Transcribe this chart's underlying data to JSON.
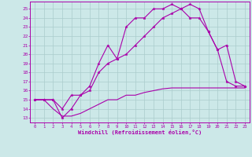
{
  "xlabel": "Windchill (Refroidissement éolien,°C)",
  "bg_color": "#cce8e8",
  "line_color": "#aa00aa",
  "grid_color": "#aacccc",
  "xlim": [
    -0.5,
    23.5
  ],
  "ylim": [
    12.5,
    25.8
  ],
  "yticks": [
    13,
    14,
    15,
    16,
    17,
    18,
    19,
    20,
    21,
    22,
    23,
    24,
    25
  ],
  "xticks": [
    0,
    1,
    2,
    3,
    4,
    5,
    6,
    7,
    8,
    9,
    10,
    11,
    12,
    13,
    14,
    15,
    16,
    17,
    18,
    19,
    20,
    21,
    22,
    23
  ],
  "line1_x": [
    0,
    1,
    2,
    3,
    4,
    5,
    6,
    7,
    8,
    9,
    10,
    11,
    12,
    13,
    14,
    15,
    16,
    17,
    18,
    19,
    20,
    21,
    22,
    23
  ],
  "line1_y": [
    15,
    15,
    15,
    14,
    15.5,
    15.5,
    16.5,
    19,
    21,
    19.5,
    23,
    24,
    24,
    25,
    25,
    25.5,
    25,
    24,
    24,
    22.5,
    20.5,
    21,
    17,
    16.5
  ],
  "line2_x": [
    0,
    1,
    2,
    3,
    4,
    5,
    6,
    7,
    8,
    9,
    10,
    11,
    12,
    13,
    14,
    15,
    16,
    17,
    18,
    19,
    20,
    21,
    22,
    23
  ],
  "line2_y": [
    15,
    15,
    15,
    13,
    14,
    15.5,
    16,
    18,
    19,
    19.5,
    20,
    21,
    22,
    23,
    24,
    24.5,
    25,
    25.5,
    25,
    22.5,
    20.5,
    17,
    16.5,
    16.5
  ],
  "line3_x": [
    0,
    1,
    2,
    3,
    4,
    5,
    6,
    7,
    8,
    9,
    10,
    11,
    12,
    13,
    14,
    15,
    16,
    17,
    18,
    19,
    20,
    21,
    22,
    23
  ],
  "line3_y": [
    15,
    15,
    14,
    13.2,
    13.2,
    13.5,
    14,
    14.5,
    15,
    15,
    15.5,
    15.5,
    15.8,
    16,
    16.2,
    16.3,
    16.3,
    16.3,
    16.3,
    16.3,
    16.3,
    16.3,
    16.3,
    16.3
  ]
}
